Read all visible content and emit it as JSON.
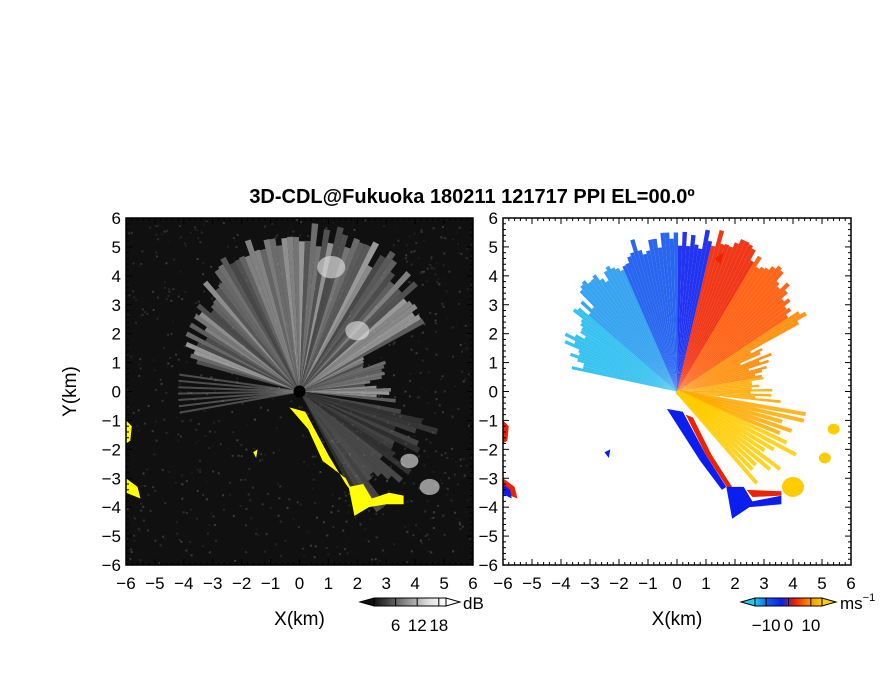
{
  "title": "3D-CDL@Fukuoka 180211 121717 PPI EL=00.0º",
  "chart_data": [
    {
      "type": "heatmap",
      "name": "reflectivity-ppi",
      "xlabel": "X(km)",
      "ylabel": "Y(km)",
      "xlim": [
        -6,
        6
      ],
      "ylim": [
        -6,
        6
      ],
      "xticks": [
        -6,
        -5,
        -4,
        -3,
        -2,
        -1,
        0,
        1,
        2,
        3,
        4,
        5,
        6
      ],
      "yticks": [
        -6,
        -5,
        -4,
        -3,
        -2,
        -1,
        0,
        1,
        2,
        3,
        4,
        5,
        6
      ],
      "colorbar": {
        "unit": "dB",
        "ticks": [
          6,
          12,
          18
        ],
        "range": [
          0,
          20
        ],
        "colormap": "grayscale"
      },
      "background_color": "#101010",
      "highlight_color": "#ffff00"
    },
    {
      "type": "heatmap",
      "name": "doppler-velocity-ppi",
      "xlabel": "X(km)",
      "ylabel": "",
      "xlim": [
        -6,
        6
      ],
      "ylim": [
        -6,
        6
      ],
      "xticks": [
        -6,
        -5,
        -4,
        -3,
        -2,
        -1,
        0,
        1,
        2,
        3,
        4,
        5,
        6
      ],
      "yticks": [
        -6,
        -5,
        -4,
        -3,
        -2,
        -1,
        0,
        1,
        2,
        3,
        4,
        5,
        6
      ],
      "colorbar": {
        "unit": "ms",
        "unit_exponent": "−1",
        "ticks": [
          -10,
          0,
          10
        ],
        "range": [
          -15,
          15
        ],
        "colormap": "cyan-blue-red-yellow"
      },
      "background_color": "#ffffff"
    }
  ]
}
